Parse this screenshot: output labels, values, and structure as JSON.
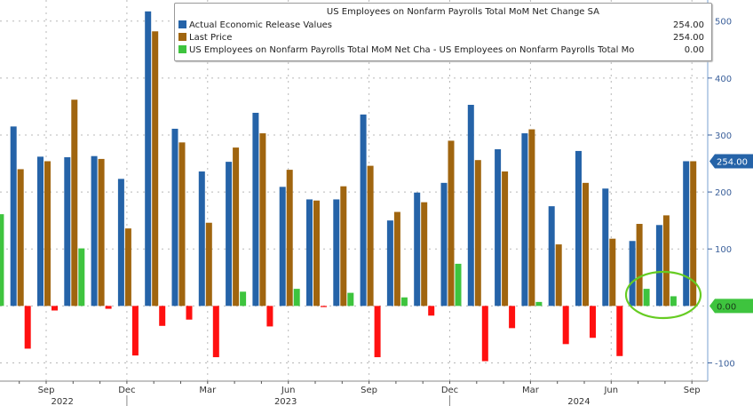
{
  "chart_data": {
    "type": "bar",
    "title": "US Employees on Nonfarm Payrolls Total MoM Net Change SA",
    "xlabel": "",
    "ylabel": "",
    "ylim": [
      -132,
      537
    ],
    "grid": true,
    "legend_position": "top",
    "y_ticks": [
      -100,
      100,
      200,
      300,
      400,
      500
    ],
    "y_tick_labels": [
      "-100",
      "100",
      "200",
      "300",
      "400",
      "500"
    ],
    "month_labels": [
      {
        "month": "2022-09",
        "label": "Sep"
      },
      {
        "month": "2022-12",
        "label": "Dec"
      },
      {
        "month": "2023-03",
        "label": "Mar"
      },
      {
        "month": "2023-06",
        "label": "Jun"
      },
      {
        "month": "2023-09",
        "label": "Sep"
      },
      {
        "month": "2023-12",
        "label": "Dec"
      },
      {
        "month": "2024-03",
        "label": "Mar"
      },
      {
        "month": "2024-06",
        "label": "Jun"
      },
      {
        "month": "2024-09",
        "label": "Sep"
      }
    ],
    "year_labels": [
      {
        "label": "2022",
        "month": "2022-09.6"
      },
      {
        "label": "2023",
        "month": "2023-05.9"
      },
      {
        "label": "2024",
        "month": "2024-04.8"
      }
    ],
    "categories": [
      "2022-07",
      "2022-08",
      "2022-09",
      "2022-10",
      "2022-11",
      "2022-12",
      "2023-01",
      "2023-02",
      "2023-03",
      "2023-04",
      "2023-05",
      "2023-06",
      "2023-07",
      "2023-08",
      "2023-09",
      "2023-10",
      "2023-11",
      "2023-12",
      "2024-01",
      "2024-02",
      "2024-03",
      "2024-04",
      "2024-05",
      "2024-06",
      "2024-07",
      "2024-08",
      "2024-09"
    ],
    "series": [
      {
        "name": "Actual Economic Release Values",
        "color": "#2563a8",
        "last_value": "254.00",
        "values": [
          null,
          315,
          262,
          261,
          263,
          223,
          517,
          311,
          236,
          253,
          339,
          209,
          187,
          187,
          336,
          150,
          199,
          216,
          353,
          275,
          303,
          175,
          272,
          206,
          114,
          142,
          254
        ]
      },
      {
        "name": "Last Price",
        "color": "#a0650f",
        "last_value": "254.00",
        "values": [
          null,
          240,
          254,
          362,
          258,
          136,
          482,
          287,
          146,
          278,
          303,
          239,
          185,
          210,
          246,
          165,
          182,
          290,
          256,
          236,
          310,
          108,
          216,
          118,
          144,
          159,
          254
        ]
      },
      {
        "name": "US Employees on Nonfarm Payrolls Total MoM Net Cha - US Employees on Nonfarm Payrolls Total Mo",
        "color": "#3ec43e",
        "negative_color": "#ff1010",
        "last_value": "0.00",
        "values": [
          161,
          -75,
          -8,
          101,
          -5,
          -87,
          -35,
          -24,
          -90,
          25,
          -36,
          30,
          -2,
          23,
          -90,
          15,
          -17,
          74,
          -97,
          -39,
          7,
          -67,
          -56,
          -88,
          30,
          17,
          0
        ]
      }
    ],
    "callouts": [
      {
        "label": "254.00",
        "value": 254,
        "color": "#2563a8"
      },
      {
        "label": "0.00",
        "value": 0,
        "color": "#3ec43e"
      }
    ]
  }
}
